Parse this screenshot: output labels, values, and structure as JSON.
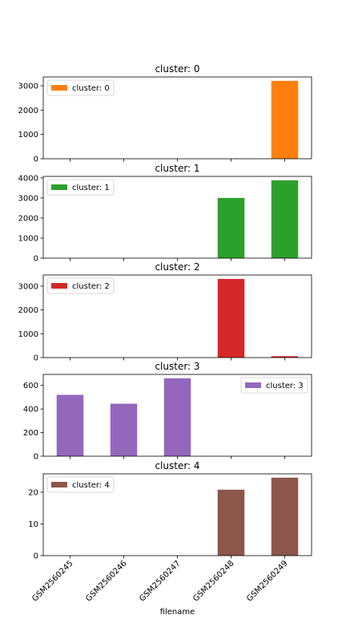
{
  "chart_data": {
    "type": "bar",
    "layout": "stacked-subplots",
    "shared_x": true,
    "categories": [
      "GSM2560245",
      "GSM2560246",
      "GSM2560247",
      "GSM2560248",
      "GSM2560249"
    ],
    "xlabel": "filename",
    "subplots": [
      {
        "title": "cluster: 0",
        "legend": "cluster: 0",
        "legend_loc": "upper-left",
        "color": "#ff7f0e",
        "values": [
          0,
          0,
          0,
          0,
          3200
        ],
        "ylim": [
          0,
          3360
        ],
        "yticks": [
          0,
          1000,
          2000,
          3000
        ]
      },
      {
        "title": "cluster: 1",
        "legend": "cluster: 1",
        "legend_loc": "upper-left",
        "color": "#2ca02c",
        "values": [
          0,
          0,
          0,
          3000,
          3880
        ],
        "ylim": [
          0,
          4074
        ],
        "yticks": [
          0,
          1000,
          2000,
          3000,
          4000
        ]
      },
      {
        "title": "cluster: 2",
        "legend": "cluster: 2",
        "legend_loc": "upper-left",
        "color": "#d62728",
        "values": [
          0,
          0,
          0,
          3300,
          60
        ],
        "ylim": [
          0,
          3465
        ],
        "yticks": [
          0,
          1000,
          2000,
          3000
        ]
      },
      {
        "title": "cluster: 3",
        "legend": "cluster: 3",
        "legend_loc": "upper-right",
        "color": "#9467bd",
        "values": [
          520,
          445,
          660,
          0,
          0
        ],
        "ylim": [
          0,
          693
        ],
        "yticks": [
          0,
          200,
          400,
          600
        ]
      },
      {
        "title": "cluster: 4",
        "legend": "cluster: 4",
        "legend_loc": "upper-left",
        "color": "#8c564b",
        "values": [
          0,
          0,
          0,
          20.8,
          24.6
        ],
        "ylim": [
          0,
          25.8
        ],
        "yticks": [
          0,
          10,
          20
        ]
      }
    ]
  }
}
